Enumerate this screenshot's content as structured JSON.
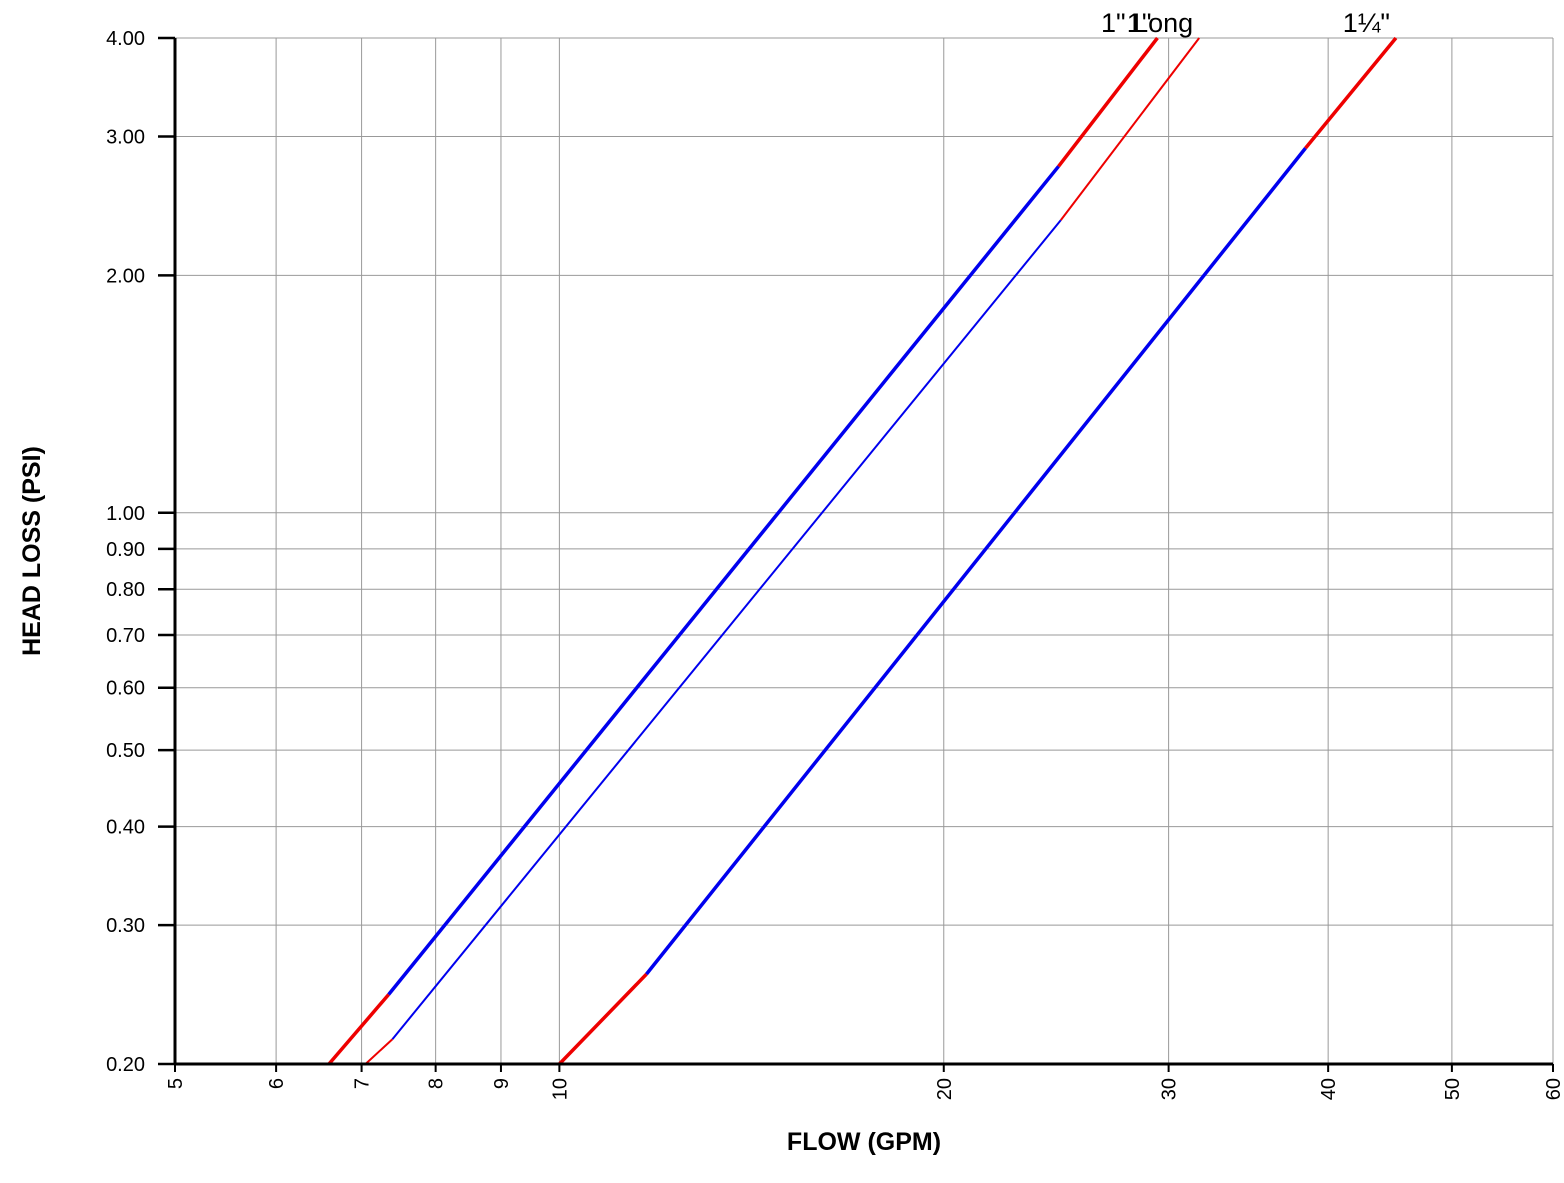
{
  "chart_data": {
    "type": "line",
    "title": "",
    "xlabel": "FLOW (GPM)",
    "ylabel": "HEAD LOSS (PSI)",
    "xscale": "log",
    "yscale": "log",
    "xlim": [
      5,
      60
    ],
    "ylim": [
      0.2,
      4.0
    ],
    "grid": true,
    "x_ticks": [
      5,
      6,
      7,
      8,
      9,
      10,
      20,
      30,
      40,
      50,
      60
    ],
    "x_tick_labels": [
      "5",
      "6",
      "7",
      "8",
      "9",
      "10",
      "20",
      "30",
      "40",
      "50",
      "60"
    ],
    "y_ticks": [
      0.2,
      0.3,
      0.4,
      0.5,
      0.6,
      0.7,
      0.8,
      0.9,
      1.0,
      2.0,
      3.0,
      4.0
    ],
    "y_tick_labels": [
      "0.20",
      "0.30",
      "0.40",
      "0.50",
      "0.60",
      "0.70",
      "0.80",
      "0.90",
      "1.00",
      "2.00",
      "3.00",
      "4.00"
    ],
    "colors": {
      "in_range": "#0000ee",
      "out_of_range": "#ee0000",
      "grid": "#999999"
    },
    "series": [
      {
        "name": "1\"",
        "width": "thick",
        "segments": [
          {
            "color": "out_of_range",
            "x": [
              6.6,
              7.35
            ],
            "y": [
              0.2,
              0.245
            ]
          },
          {
            "color": "in_range",
            "x": [
              7.35,
              24.6
            ],
            "y": [
              0.245,
              2.75
            ]
          },
          {
            "color": "out_of_range",
            "x": [
              24.6,
              29.4
            ],
            "y": [
              2.75,
              4.0
            ]
          }
        ]
      },
      {
        "name": "1\" Long",
        "width": "thin",
        "segments": [
          {
            "color": "out_of_range",
            "x": [
              7.05,
              7.4
            ],
            "y": [
              0.2,
              0.215
            ]
          },
          {
            "color": "in_range",
            "x": [
              7.4,
              24.7
            ],
            "y": [
              0.215,
              2.35
            ]
          },
          {
            "color": "out_of_range",
            "x": [
              24.7,
              31.7
            ],
            "y": [
              2.35,
              4.0
            ]
          }
        ]
      },
      {
        "name": "1¼\"",
        "width": "thick",
        "segments": [
          {
            "color": "out_of_range",
            "x": [
              10.0,
              11.7
            ],
            "y": [
              0.2,
              0.26
            ]
          },
          {
            "color": "in_range",
            "x": [
              11.7,
              38.4
            ],
            "y": [
              0.26,
              2.9
            ]
          },
          {
            "color": "out_of_range",
            "x": [
              38.4,
              45.2
            ],
            "y": [
              2.9,
              4.0
            ]
          }
        ]
      }
    ]
  }
}
